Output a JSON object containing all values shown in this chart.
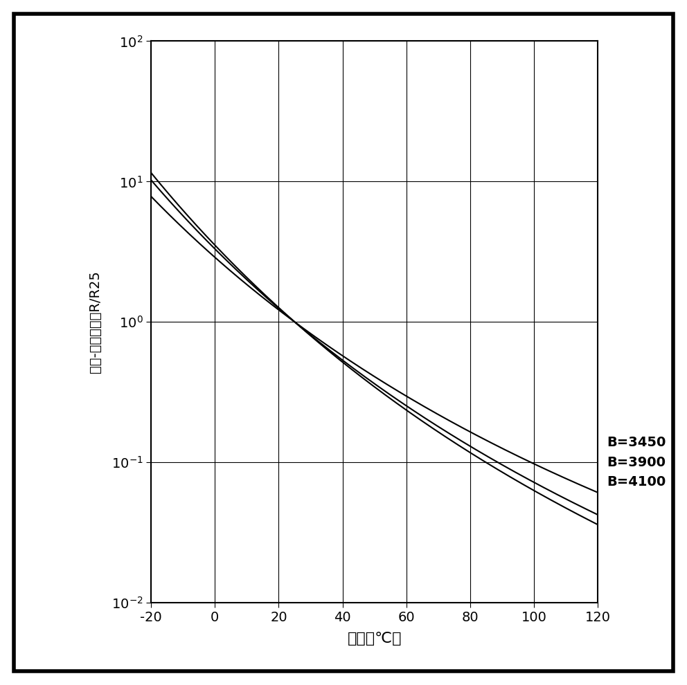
{
  "xlabel": "温度（℃）",
  "ylabel": "电阮-温度特性，R∕R25",
  "xlim": [
    -20,
    120
  ],
  "ylim_log": [
    -2,
    2
  ],
  "xticks": [
    -20,
    0,
    20,
    40,
    60,
    80,
    100,
    120
  ],
  "B_values": [
    3450,
    3900,
    4100
  ],
  "T_ref": 298.15,
  "line_color": "#000000",
  "background_color": "#ffffff",
  "border_color": "#000000",
  "legend_labels": [
    "B=3450",
    "B=3900",
    "B=4100"
  ]
}
